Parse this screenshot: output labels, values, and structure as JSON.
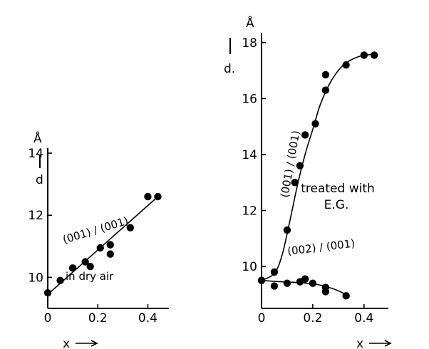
{
  "chart_data": [
    {
      "type": "scatter",
      "ylabel_top": "Å",
      "ylabel_main": "d",
      "xlabel": "x",
      "xlim": [
        0,
        0.45
      ],
      "ylim": [
        9,
        14.3
      ],
      "x_ticks": [
        "0",
        "0.2",
        "0.4"
      ],
      "y_ticks": [
        "10",
        "12",
        "14"
      ],
      "annotations": [
        "(001) / (001)",
        "in dry air"
      ],
      "series": [
        {
          "name": "(001) / (001)",
          "points": [
            [
              0.0,
              9.5
            ],
            [
              0.05,
              9.9
            ],
            [
              0.1,
              10.3
            ],
            [
              0.15,
              10.5
            ],
            [
              0.17,
              10.35
            ],
            [
              0.21,
              10.95
            ],
            [
              0.25,
              11.05
            ],
            [
              0.25,
              10.75
            ],
            [
              0.33,
              11.6
            ],
            [
              0.4,
              12.6
            ],
            [
              0.44,
              12.6
            ]
          ],
          "fit": [
            [
              0.0,
              9.45
            ],
            [
              0.44,
              12.6
            ]
          ]
        }
      ]
    },
    {
      "type": "scatter",
      "ylabel_top": "Å",
      "ylabel_main": "d.",
      "xlabel": "x",
      "xlim": [
        0,
        0.47
      ],
      "ylim": [
        8.5,
        18.3
      ],
      "x_ticks": [
        "0",
        "0.2",
        "0.4"
      ],
      "y_ticks": [
        "10",
        "12",
        "14",
        "16",
        "18"
      ],
      "annotations": [
        "(001) / (001)",
        "(002) / (001)",
        "treated with",
        "E.G."
      ],
      "series": [
        {
          "name": "(001) / (001)",
          "points": [
            [
              0.0,
              9.5
            ],
            [
              0.05,
              9.8
            ],
            [
              0.1,
              11.3
            ],
            [
              0.13,
              13.0
            ],
            [
              0.15,
              13.6
            ],
            [
              0.17,
              14.7
            ],
            [
              0.21,
              15.1
            ],
            [
              0.25,
              16.3
            ],
            [
              0.25,
              16.85
            ],
            [
              0.33,
              17.2
            ],
            [
              0.4,
              17.55
            ],
            [
              0.44,
              17.55
            ]
          ],
          "fit": [
            [
              0.0,
              9.5
            ],
            [
              0.05,
              9.75
            ],
            [
              0.08,
              10.4
            ],
            [
              0.11,
              11.6
            ],
            [
              0.14,
              12.9
            ],
            [
              0.17,
              14.0
            ],
            [
              0.2,
              14.9
            ],
            [
              0.23,
              15.8
            ],
            [
              0.27,
              16.6
            ],
            [
              0.32,
              17.2
            ],
            [
              0.38,
              17.5
            ],
            [
              0.45,
              17.6
            ]
          ]
        },
        {
          "name": "(002) / (001)",
          "points": [
            [
              0.0,
              9.5
            ],
            [
              0.05,
              9.3
            ],
            [
              0.1,
              9.4
            ],
            [
              0.15,
              9.45
            ],
            [
              0.17,
              9.55
            ],
            [
              0.2,
              9.4
            ],
            [
              0.25,
              9.25
            ],
            [
              0.25,
              9.1
            ],
            [
              0.33,
              8.95
            ]
          ],
          "fit": [
            [
              0.0,
              9.5
            ],
            [
              0.08,
              9.45
            ],
            [
              0.15,
              9.42
            ],
            [
              0.22,
              9.35
            ],
            [
              0.28,
              9.2
            ],
            [
              0.33,
              9.0
            ]
          ]
        }
      ]
    }
  ]
}
